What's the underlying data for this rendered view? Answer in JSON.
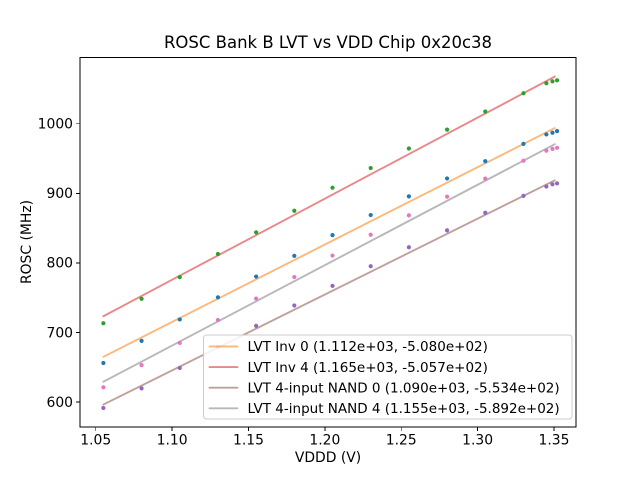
{
  "figure": {
    "title": "ROSC Bank B LVT vs VDD Chip 0x20c38",
    "xlabel": "VDDD (V)",
    "ylabel": "ROSC (MHz)"
  },
  "chart_data": {
    "type": "scatter",
    "title": "ROSC Bank B LVT vs VDD Chip 0x20c38",
    "xlabel": "VDDD (V)",
    "ylabel": "ROSC (MHz)",
    "xlim": [
      1.0397,
      1.3644
    ],
    "ylim": [
      564,
      1095
    ],
    "xtick_values": [
      1.05,
      1.1,
      1.15,
      1.2,
      1.25,
      1.3,
      1.35
    ],
    "xtick_labels": [
      "1.05",
      "1.10",
      "1.15",
      "1.20",
      "1.25",
      "1.30",
      "1.35"
    ],
    "ytick_values": [
      600,
      700,
      800,
      900,
      1000
    ],
    "ytick_labels": [
      "600",
      "700",
      "800",
      "900",
      "1000"
    ],
    "grid": false,
    "legend_position": "lower right",
    "fit_x_range": [
      1.055,
      1.3505
    ],
    "x": [
      1.055,
      1.08,
      1.105,
      1.13,
      1.155,
      1.18,
      1.205,
      1.23,
      1.255,
      1.28,
      1.305,
      1.33,
      1.345,
      1.349,
      1.352
    ],
    "series": [
      {
        "name": "LVT Inv 0",
        "legend_label": "LVT Inv 0 (1.112e+03, -5.080e+02)",
        "fit_slope": 1112.0,
        "fit_intercept": -508.0,
        "marker_color": "#1f77b4",
        "line_color": "#ff7f0e",
        "values": [
          656.2,
          688.0,
          718.8,
          750.6,
          780.4,
          810.2,
          840.0,
          868.8,
          895.6,
          921.4,
          946.2,
          971.0,
          984.6,
          987.1,
          989.4
        ]
      },
      {
        "name": "LVT Inv 4",
        "legend_label": "LVT Inv 4 (1.165e+03, -5.057e+02)",
        "fit_slope": 1165.0,
        "fit_intercept": -505.7,
        "marker_color": "#2ca02c",
        "line_color": "#d62728",
        "values": [
          713.4,
          748.5,
          779.6,
          812.8,
          843.9,
          875.0,
          908.1,
          936.3,
          964.4,
          991.5,
          1017.6,
          1043.8,
          1058.2,
          1060.9,
          1062.4
        ]
      },
      {
        "name": "LVT 4-input NAND 0",
        "legend_label": "LVT 4-input NAND 0 (1.090e+03, -5.534e+02)",
        "fit_slope": 1090.0,
        "fit_intercept": -553.4,
        "marker_color": "#9467bd",
        "line_color": "#8c564b",
        "values": [
          591.6,
          619.8,
          649.1,
          679.3,
          709.6,
          738.8,
          767.1,
          795.3,
          822.6,
          846.8,
          872.1,
          896.3,
          909.7,
          913.0,
          914.3
        ]
      },
      {
        "name": "LVT 4-input NAND 4",
        "legend_label": "LVT 4-input NAND 4 (1.155e+03, -5.892e+02)",
        "fit_slope": 1155.0,
        "fit_intercept": -589.2,
        "marker_color": "#e377c2",
        "line_color": "#7f7f7f",
        "values": [
          621.3,
          653.2,
          685.1,
          718.0,
          748.8,
          779.7,
          810.6,
          840.5,
          868.3,
          895.2,
          921.1,
          946.9,
          961.3,
          963.9,
          965.4
        ]
      }
    ]
  }
}
